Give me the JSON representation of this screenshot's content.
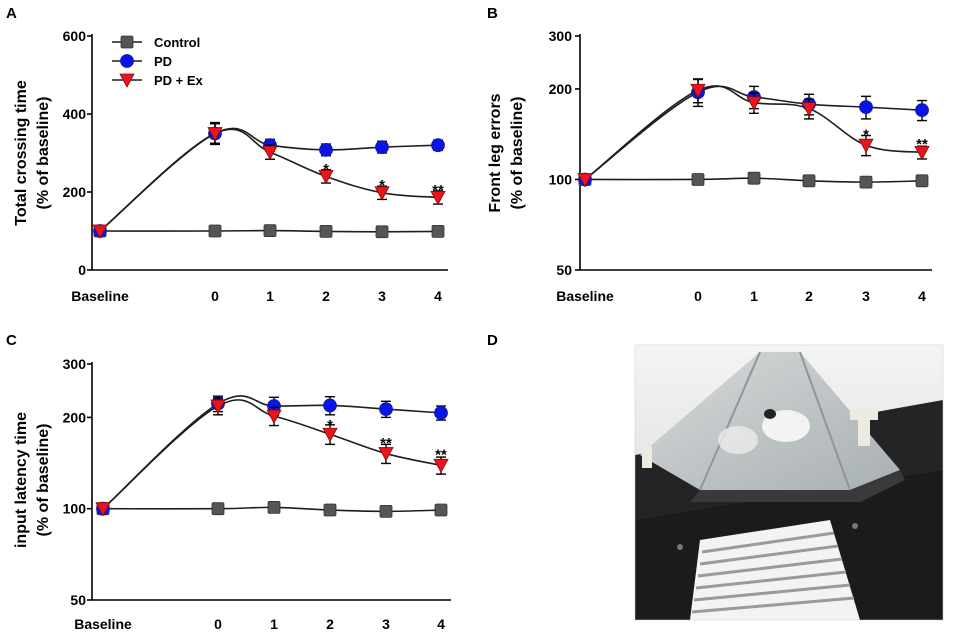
{
  "figure": {
    "panel_letters": [
      "A",
      "B",
      "C",
      "D"
    ],
    "photo_description_name": "rat-beam-walking-apparatus"
  },
  "chart_data": [
    {
      "id": "A",
      "type": "line",
      "panel_label": "A",
      "ylabel_line1": "Total crossing time",
      "ylabel_line2": "(% of baseline)",
      "xlabel": "",
      "categories": [
        "Baseline",
        "0",
        "1",
        "2",
        "3",
        "4"
      ],
      "yscale": "linear",
      "ylim": [
        0,
        600
      ],
      "yticks": [
        0,
        200,
        400,
        600
      ],
      "legend": true,
      "legend_position": "top-left",
      "series": [
        {
          "name": "Control",
          "color": "#555555",
          "marker": "square",
          "values": [
            100,
            100,
            101,
            99,
            98,
            99
          ],
          "errors": [
            0,
            5,
            5,
            4,
            4,
            4
          ]
        },
        {
          "name": "PD",
          "color": "#0a14e6",
          "marker": "circle",
          "values": [
            100,
            350,
            320,
            308,
            315,
            320
          ],
          "errors": [
            0,
            25,
            15,
            15,
            15,
            13
          ]
        },
        {
          "name": "PD + Ex",
          "color": "#e8141e",
          "marker": "triangle-down",
          "values": [
            100,
            350,
            302,
            240,
            198,
            186
          ],
          "errors": [
            0,
            28,
            18,
            17,
            17,
            17
          ]
        }
      ],
      "significance": [
        {
          "category": "2",
          "label": "*",
          "value": 262
        },
        {
          "category": "3",
          "label": "*",
          "value": 220
        },
        {
          "category": "4",
          "label": "**",
          "value": 208
        }
      ]
    },
    {
      "id": "B",
      "type": "line",
      "panel_label": "B",
      "ylabel_line1": "Front leg errors",
      "ylabel_line2": "(% of baseline)",
      "xlabel": "",
      "categories": [
        "Baseline",
        "0",
        "1",
        "2",
        "3",
        "4"
      ],
      "yscale": "log",
      "ylim": [
        50,
        300
      ],
      "yticks": [
        50,
        100,
        200,
        300
      ],
      "legend": false,
      "series": [
        {
          "name": "Control",
          "color": "#555555",
          "marker": "square",
          "values": [
            100,
            100,
            101,
            99,
            98,
            99
          ],
          "errors": [
            0,
            3,
            4,
            3,
            3,
            3
          ]
        },
        {
          "name": "PD",
          "color": "#0a14e6",
          "marker": "circle",
          "values": [
            100,
            195,
            188,
            178,
            174,
            170
          ],
          "errors": [
            0,
            20,
            16,
            14,
            15,
            13
          ]
        },
        {
          "name": "PD + Ex",
          "color": "#e8141e",
          "marker": "triangle-down",
          "values": [
            100,
            198,
            180,
            172,
            130,
            123
          ],
          "errors": [
            0,
            18,
            14,
            13,
            10,
            6
          ]
        }
      ],
      "significance": [
        {
          "category": "3",
          "label": "*",
          "value": 142
        },
        {
          "category": "4",
          "label": "**",
          "value": 132
        }
      ]
    },
    {
      "id": "C",
      "type": "line",
      "panel_label": "C",
      "ylabel_line1": "input latency time",
      "ylabel_line2": "(% of baseline)",
      "xlabel": "",
      "categories": [
        "Baseline",
        "0",
        "1",
        "2",
        "3",
        "4"
      ],
      "yscale": "log",
      "ylim": [
        50,
        300
      ],
      "yticks": [
        50,
        100,
        200,
        300
      ],
      "legend": false,
      "series": [
        {
          "name": "Control",
          "color": "#555555",
          "marker": "square",
          "values": [
            100,
            100,
            101,
            99,
            98,
            99
          ],
          "errors": [
            0,
            3,
            4,
            3,
            3,
            3
          ]
        },
        {
          "name": "PD",
          "color": "#0a14e6",
          "marker": "circle",
          "values": [
            100,
            222,
            218,
            219,
            213,
            207
          ],
          "errors": [
            0,
            13,
            15,
            15,
            13,
            11
          ]
        },
        {
          "name": "PD + Ex",
          "color": "#e8141e",
          "marker": "triangle-down",
          "values": [
            100,
            218,
            202,
            176,
            152,
            139
          ],
          "errors": [
            0,
            14,
            14,
            13,
            11,
            9
          ]
        }
      ],
      "significance": [
        {
          "category": "2",
          "label": "*",
          "value": 190
        },
        {
          "category": "3",
          "label": "**",
          "value": 166
        },
        {
          "category": "4",
          "label": "**",
          "value": 152
        }
      ]
    }
  ]
}
